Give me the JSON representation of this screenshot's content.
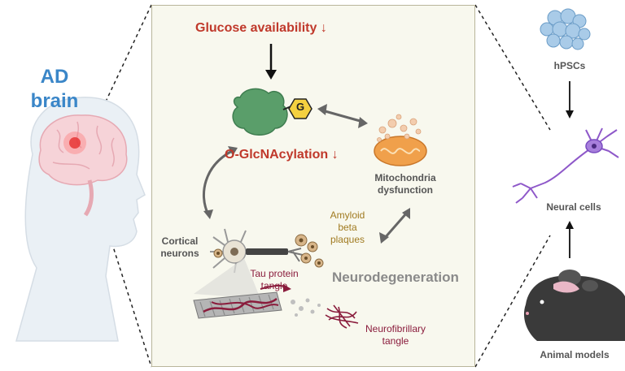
{
  "left": {
    "title_line1": "AD",
    "title_line2": "brain"
  },
  "panel": {
    "glucose": "Glucose availability ↓",
    "glyco_badge": "G",
    "oglcnac": "O-GlcNAcylation ↓",
    "mito_line1": "Mitochondria",
    "mito_line2": "dysfunction",
    "amyloid_line1": "Amyloid",
    "amyloid_line2": "beta",
    "amyloid_line3": "plaques",
    "cortical_line1": "Cortical",
    "cortical_line2": "neurons",
    "tau_line1": "Tau protein",
    "tau_line2": "tangle",
    "neurodegeneration": "Neurodegeneration",
    "nft_line1": "Neurofibrillary",
    "nft_line2": "tangle"
  },
  "right": {
    "hpsc": "hPSCs",
    "neural_cells": "Neural cells",
    "animal_models": "Animal models"
  },
  "colors": {
    "ad_blue": "#3a86c8",
    "red_text": "#c0392b",
    "panel_bg": "#f8f8ee",
    "protein_green": "#5a9e6a",
    "glyco_yellow": "#f4d03f",
    "neuron_purple": "#8e58c9"
  }
}
